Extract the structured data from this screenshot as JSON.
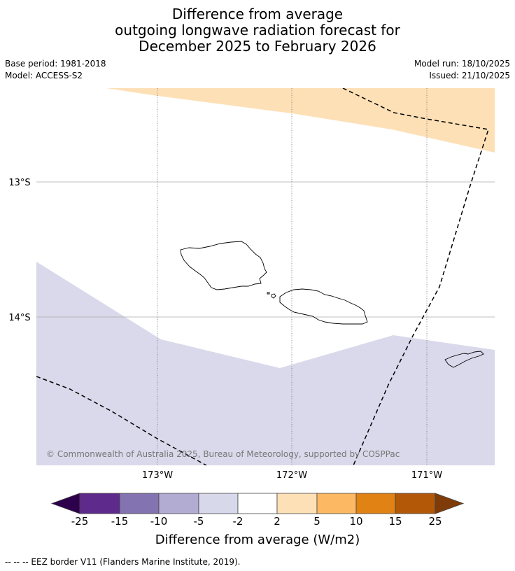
{
  "title": {
    "line1": "Difference from average",
    "line2": "outgoing longwave radiation forecast for",
    "line3": "December 2025 to February 2026"
  },
  "info": {
    "base_period": "Base period: 1981-2018",
    "model": "Model: ACCESS-S2",
    "model_run": "Model run: 18/10/2025",
    "issued": "Issued: 21/10/2025"
  },
  "map": {
    "lat_labels": [
      "13°S",
      "14°S"
    ],
    "lon_labels": [
      "173°W",
      "172°W",
      "171°W"
    ],
    "copyright": "© Commonwealth of Australia 2025, Bureau of Meteorology, supported by COSPPac",
    "colors": {
      "positive_anomaly": "#fde0b6",
      "negative_anomaly": "#d9d9eb",
      "land_outline": "#000000"
    }
  },
  "colorbar": {
    "label": "Difference from average (W/m2)",
    "ticks": [
      "-25",
      "-15",
      "-10",
      "-5",
      "-2",
      "2",
      "5",
      "10",
      "15",
      "25"
    ],
    "colors": [
      "#2d004b",
      "#5e2a8c",
      "#8373b0",
      "#b2abd2",
      "#d8d8eb",
      "#ffffff",
      "#fde0b6",
      "#fdb863",
      "#e08214",
      "#b35806",
      "#7f3b08"
    ]
  },
  "legend": {
    "eez": "--  --  -- EEZ border V11 (Flanders Marine Institute, 2019)."
  }
}
